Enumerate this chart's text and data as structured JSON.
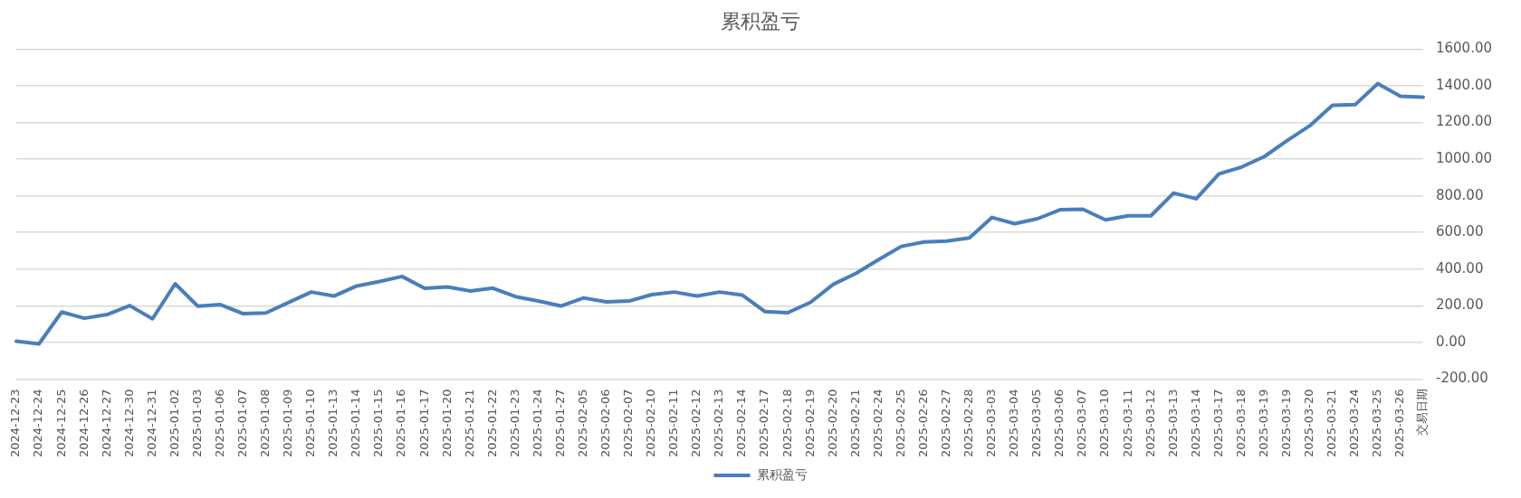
{
  "chart_data": {
    "type": "line",
    "title": "累积盈亏",
    "categories": [
      "2024-12-23",
      "2024-12-24",
      "2024-12-25",
      "2024-12-26",
      "2024-12-27",
      "2024-12-30",
      "2024-12-31",
      "2025-01-02",
      "2025-01-03",
      "2025-01-06",
      "2025-01-07",
      "2025-01-08",
      "2025-01-09",
      "2025-01-10",
      "2025-01-13",
      "2025-01-14",
      "2025-01-15",
      "2025-01-16",
      "2025-01-17",
      "2025-01-20",
      "2025-01-21",
      "2025-01-22",
      "2025-01-23",
      "2025-01-24",
      "2025-01-27",
      "2025-02-05",
      "2025-02-06",
      "2025-02-07",
      "2025-02-10",
      "2025-02-11",
      "2025-02-12",
      "2025-02-13",
      "2025-02-14",
      "2025-02-17",
      "2025-02-18",
      "2025-02-19",
      "2025-02-20",
      "2025-02-21",
      "2025-02-24",
      "2025-02-25",
      "2025-02-26",
      "2025-02-27",
      "2025-02-28",
      "2025-03-03",
      "2025-03-04",
      "2025-03-05",
      "2025-03-06",
      "2025-03-07",
      "2025-03-10",
      "2025-03-11",
      "2025-03-12",
      "2025-03-13",
      "2025-03-14",
      "2025-03-17",
      "2025-03-18",
      "2025-03-19",
      "2025-03-19",
      "2025-03-20",
      "2025-03-21",
      "2025-03-24",
      "2025-03-25",
      "2025-03-26",
      "交易日期"
    ],
    "series": [
      {
        "name": "累积盈亏",
        "color": "#4a7ebb",
        "values": [
          7,
          -8,
          166,
          132,
          152,
          201,
          129,
          320,
          198,
          206,
          157,
          161,
          218,
          275,
          253,
          308,
          332,
          360,
          295,
          303,
          281,
          296,
          250,
          226,
          199,
          243,
          221,
          226,
          261,
          275,
          253,
          275,
          258,
          168,
          162,
          219,
          317,
          377,
          452,
          524,
          548,
          553,
          570,
          682,
          648,
          675,
          724,
          727,
          669,
          691,
          691,
          815,
          784,
          920,
          957,
          1014,
          1101,
          1182,
          1294,
          1297,
          1412,
          1343,
          1338
        ]
      }
    ],
    "ylim": [
      -200,
      1600
    ],
    "yticks": [
      {
        "value": -200,
        "label": "-200.00"
      },
      {
        "value": 0,
        "label": "0.00"
      },
      {
        "value": 200,
        "label": "200.00"
      },
      {
        "value": 400,
        "label": "400.00"
      },
      {
        "value": 600,
        "label": "600.00"
      },
      {
        "value": 800,
        "label": "800.00"
      },
      {
        "value": 1000,
        "label": "1000.00"
      },
      {
        "value": 1200,
        "label": "1200.00"
      },
      {
        "value": 1400,
        "label": "1400.00"
      },
      {
        "value": 1600,
        "label": "1600.00"
      }
    ],
    "grid": "y",
    "legend": "bottom",
    "marker": "none",
    "line_style": "solid"
  }
}
